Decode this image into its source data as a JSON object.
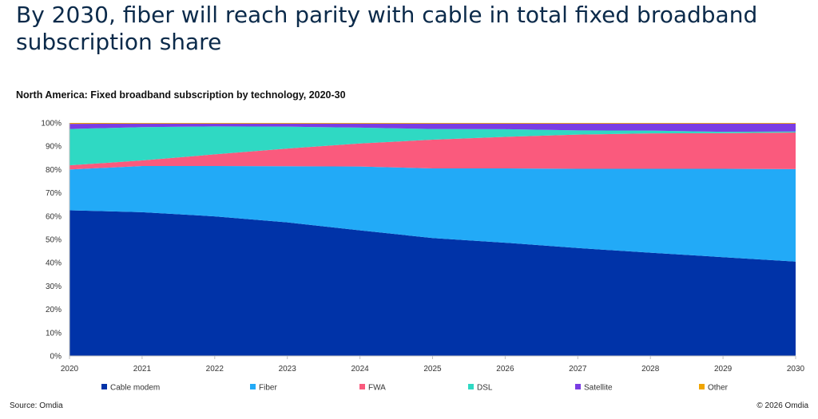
{
  "headline": "By 2030, fiber will reach parity with cable in total fixed broadband subscription share",
  "footer": {
    "source": "Source: Omdia",
    "copyright": "© 2026 Omdia"
  },
  "chart_data": {
    "type": "area",
    "stacked": true,
    "title": "North America: Fixed broadband subscription by technology, 2020-30",
    "xlabel": "",
    "ylabel": "",
    "ylim": [
      0,
      100
    ],
    "y_ticks": [
      "0%",
      "10%",
      "20%",
      "30%",
      "40%",
      "50%",
      "60%",
      "70%",
      "80%",
      "90%",
      "100%"
    ],
    "x": [
      "2020",
      "2021",
      "2022",
      "2023",
      "2024",
      "2025",
      "2026",
      "2027",
      "2028",
      "2029",
      "2030"
    ],
    "legend_position": "bottom",
    "grid": false,
    "series": [
      {
        "name": "Cable modem",
        "color": "#0033a8",
        "values": [
          62.5,
          61.7,
          59.9,
          57.3,
          53.9,
          50.6,
          48.6,
          46.3,
          44.3,
          42.4,
          40.5
        ]
      },
      {
        "name": "Fiber",
        "color": "#22aaf7",
        "values": [
          17.5,
          19.8,
          21.6,
          24.1,
          27.4,
          29.9,
          31.9,
          34.0,
          36.0,
          37.9,
          39.7
        ]
      },
      {
        "name": "FWA",
        "color": "#fa5a7d",
        "values": [
          1.8,
          2.4,
          5.0,
          7.6,
          9.9,
          12.3,
          13.5,
          14.7,
          15.2,
          15.3,
          15.7
        ]
      },
      {
        "name": "DSL",
        "color": "#2fd9c3",
        "values": [
          15.6,
          14.3,
          12.0,
          9.4,
          6.8,
          4.6,
          3.3,
          1.8,
          1.2,
          0.6,
          0.4
        ]
      },
      {
        "name": "Satellite",
        "color": "#7a3ce3",
        "values": [
          2.2,
          1.5,
          1.2,
          1.3,
          1.7,
          2.3,
          2.4,
          2.9,
          3.0,
          3.5,
          3.4
        ]
      },
      {
        "name": "Other",
        "color": "#f0a500",
        "values": [
          0.4,
          0.3,
          0.3,
          0.3,
          0.3,
          0.3,
          0.3,
          0.3,
          0.3,
          0.3,
          0.3
        ]
      }
    ]
  }
}
